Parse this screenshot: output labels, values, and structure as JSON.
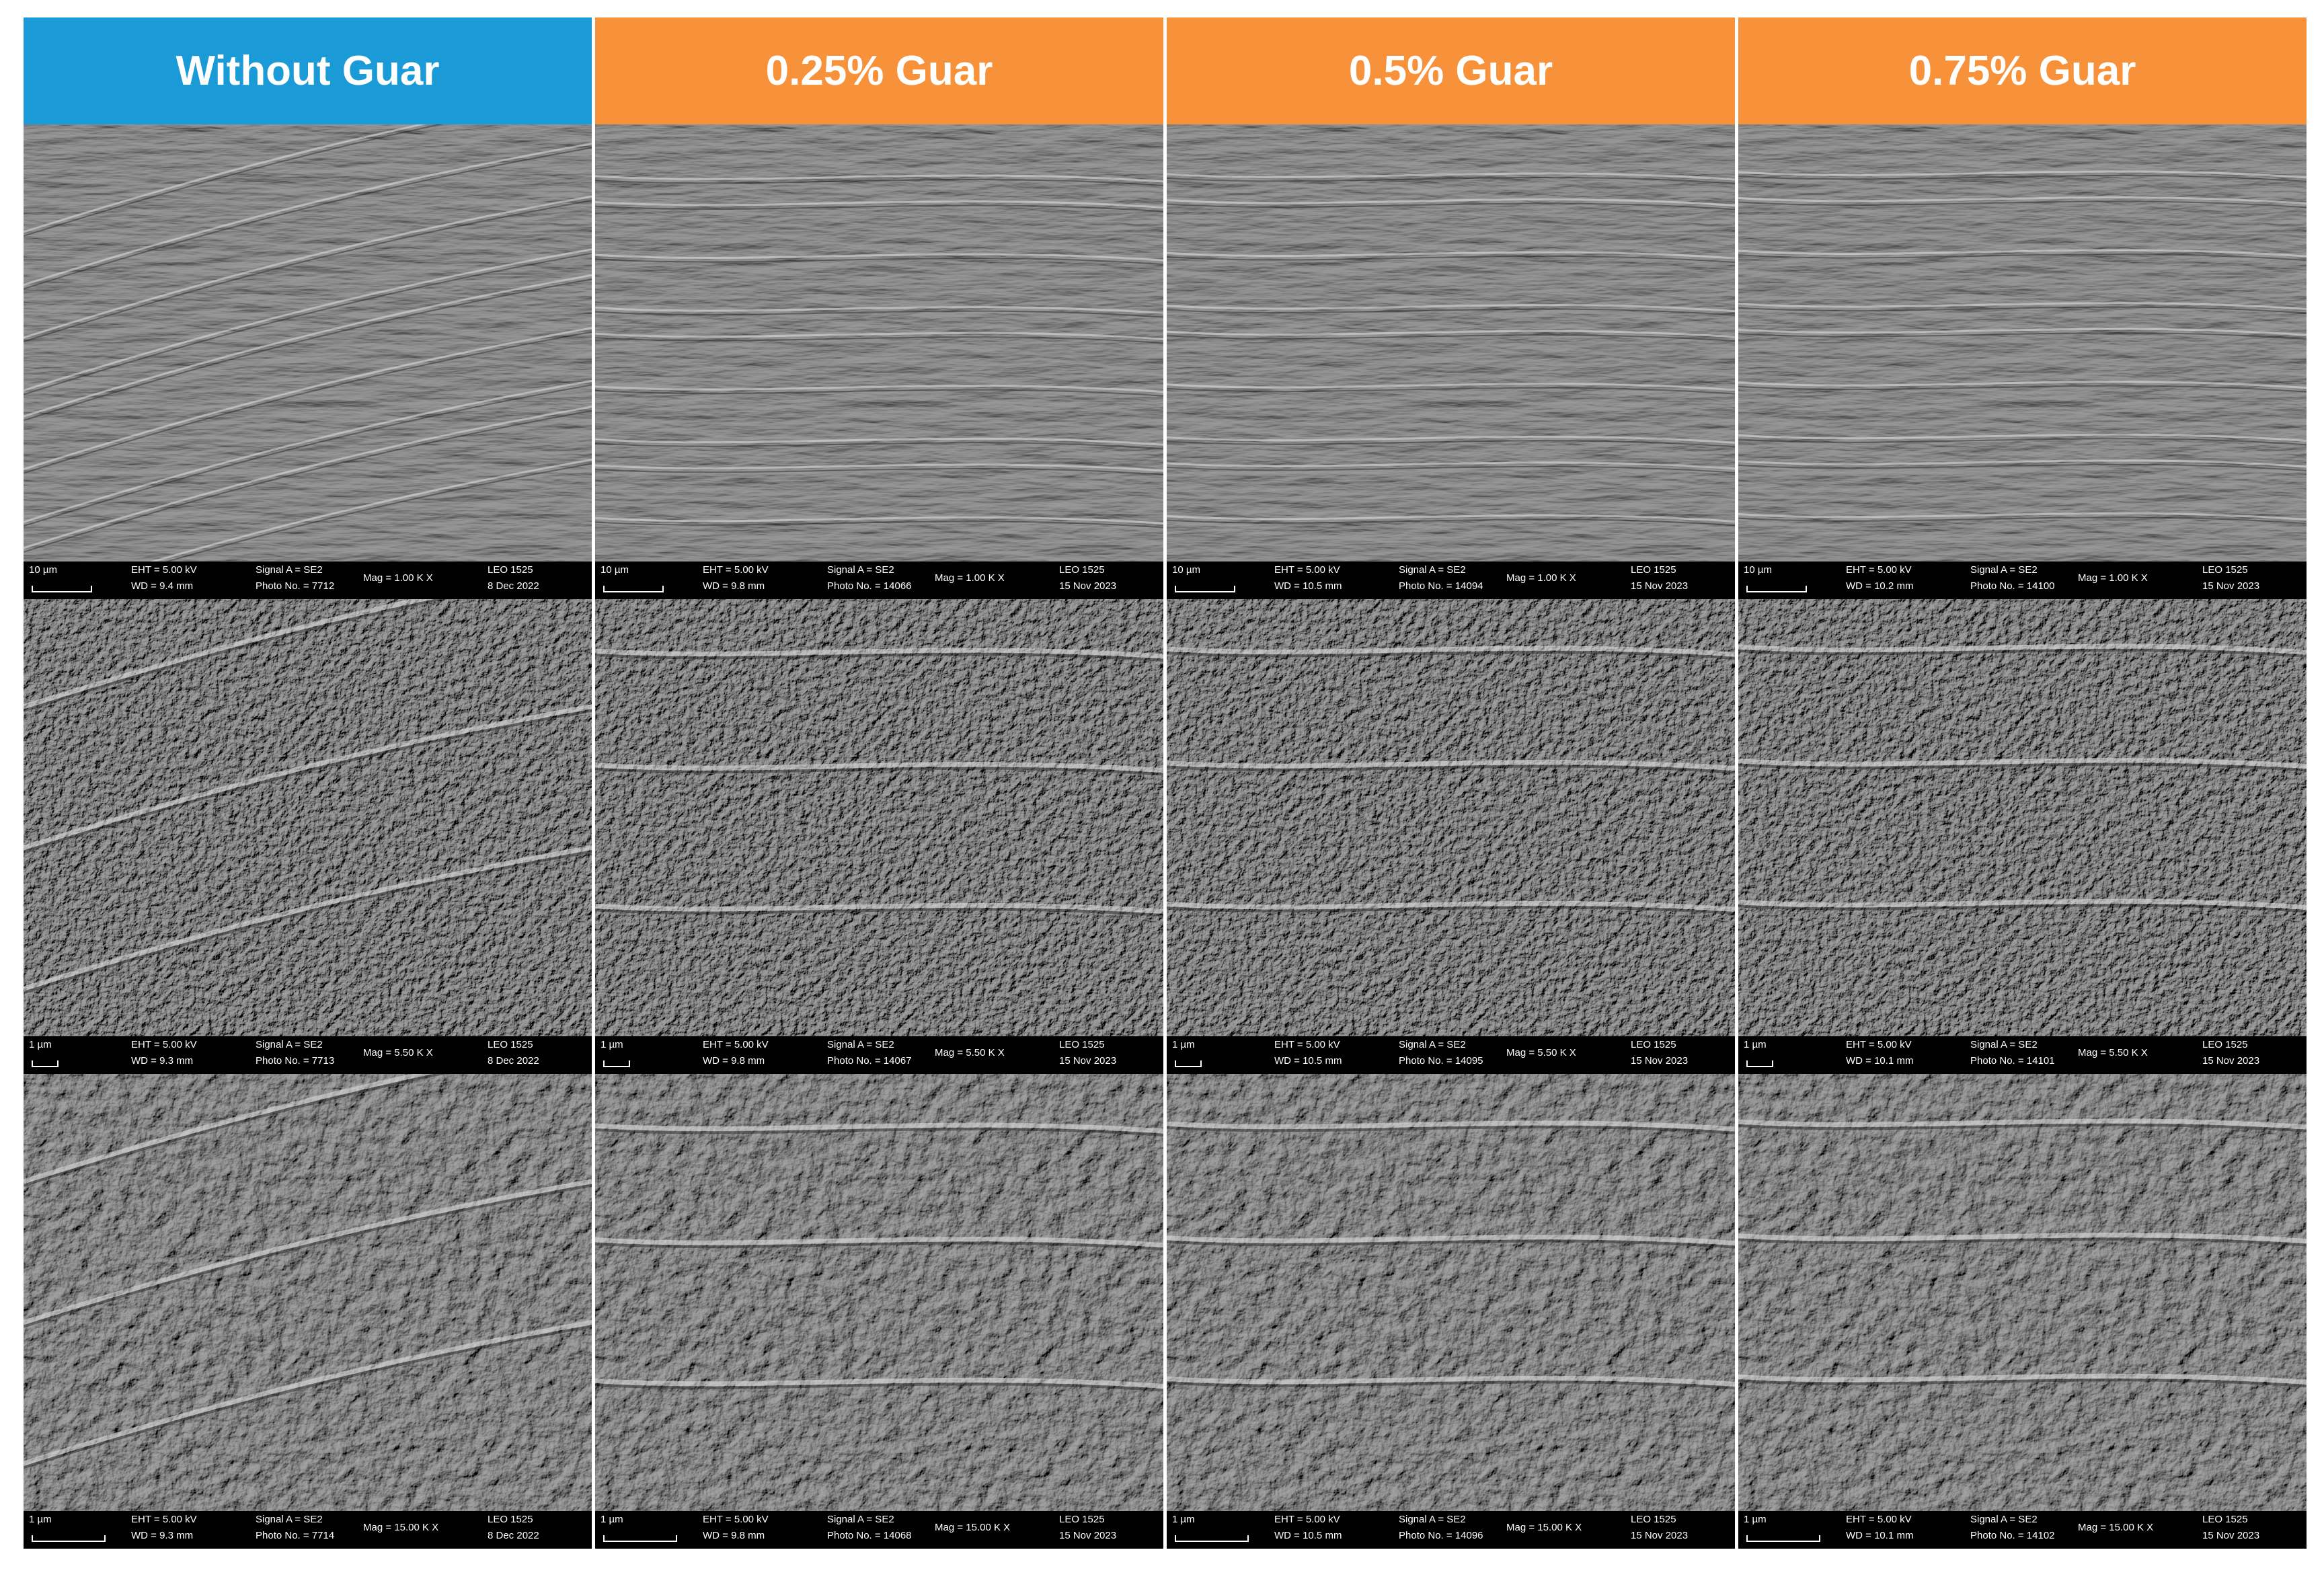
{
  "columns": [
    {
      "header": "Without Guar",
      "panels": [
        {
          "scale": "10 µm",
          "eht": "EHT = 5.00 kV",
          "wd": "WD = 9.4 mm",
          "signal": "Signal A = SE2",
          "photo": "Photo No. = 7712",
          "mag": "Mag = 1.00 K X",
          "instrument": "LEO 1525",
          "date": "8 Dec 2022"
        },
        {
          "scale": "1 µm",
          "eht": "EHT = 5.00 kV",
          "wd": "WD = 9.3 mm",
          "signal": "Signal A = SE2",
          "photo": "Photo No. = 7713",
          "mag": "Mag = 5.50 K X",
          "instrument": "LEO 1525",
          "date": "8 Dec 2022"
        },
        {
          "scale": "1 µm",
          "eht": "EHT = 5.00 kV",
          "wd": "WD = 9.3 mm",
          "signal": "Signal A = SE2",
          "photo": "Photo No. = 7714",
          "mag": "Mag = 15.00 K X",
          "instrument": "LEO 1525",
          "date": "8 Dec 2022"
        }
      ]
    },
    {
      "header": "0.25% Guar",
      "panels": [
        {
          "scale": "10 µm",
          "eht": "EHT = 5.00 kV",
          "wd": "WD = 9.8 mm",
          "signal": "Signal A = SE2",
          "photo": "Photo No. = 14066",
          "mag": "Mag = 1.00 K X",
          "instrument": "LEO 1525",
          "date": "15 Nov 2023"
        },
        {
          "scale": "1 µm",
          "eht": "EHT = 5.00 kV",
          "wd": "WD = 9.8 mm",
          "signal": "Signal A = SE2",
          "photo": "Photo No. = 14067",
          "mag": "Mag = 5.50 K X",
          "instrument": "LEO 1525",
          "date": "15 Nov 2023"
        },
        {
          "scale": "1 µm",
          "eht": "EHT = 5.00 kV",
          "wd": "WD = 9.8 mm",
          "signal": "Signal A = SE2",
          "photo": "Photo No. = 14068",
          "mag": "Mag = 15.00 K X",
          "instrument": "LEO 1525",
          "date": "15 Nov 2023"
        }
      ]
    },
    {
      "header": "0.5% Guar",
      "panels": [
        {
          "scale": "10 µm",
          "eht": "EHT = 5.00 kV",
          "wd": "WD = 10.5 mm",
          "signal": "Signal A = SE2",
          "photo": "Photo No. = 14094",
          "mag": "Mag = 1.00 K X",
          "instrument": "LEO 1525",
          "date": "15 Nov 2023"
        },
        {
          "scale": "1 µm",
          "eht": "EHT = 5.00 kV",
          "wd": "WD = 10.5 mm",
          "signal": "Signal A = SE2",
          "photo": "Photo No. = 14095",
          "mag": "Mag = 5.50 K X",
          "instrument": "LEO 1525",
          "date": "15 Nov 2023"
        },
        {
          "scale": "1 µm",
          "eht": "EHT = 5.00 kV",
          "wd": "WD = 10.5 mm",
          "signal": "Signal A = SE2",
          "photo": "Photo No. = 14096",
          "mag": "Mag = 15.00 K X",
          "instrument": "LEO 1525",
          "date": "15 Nov 2023"
        }
      ]
    },
    {
      "header": "0.75% Guar",
      "panels": [
        {
          "scale": "10 µm",
          "eht": "EHT = 5.00 kV",
          "wd": "WD = 10.2 mm",
          "signal": "Signal A = SE2",
          "photo": "Photo No. = 14100",
          "mag": "Mag = 1.00 K X",
          "instrument": "LEO 1525",
          "date": "15 Nov 2023"
        },
        {
          "scale": "1 µm",
          "eht": "EHT = 5.00 kV",
          "wd": "WD = 10.1 mm",
          "signal": "Signal A = SE2",
          "photo": "Photo No. = 14101",
          "mag": "Mag = 5.50 K X",
          "instrument": "LEO 1525",
          "date": "15 Nov 2023"
        },
        {
          "scale": "1 µm",
          "eht": "EHT = 5.00 kV",
          "wd": "WD = 10.1 mm",
          "signal": "Signal A = SE2",
          "photo": "Photo No. = 14102",
          "mag": "Mag = 15.00 K X",
          "instrument": "LEO 1525",
          "date": "15 Nov 2023"
        }
      ]
    }
  ]
}
